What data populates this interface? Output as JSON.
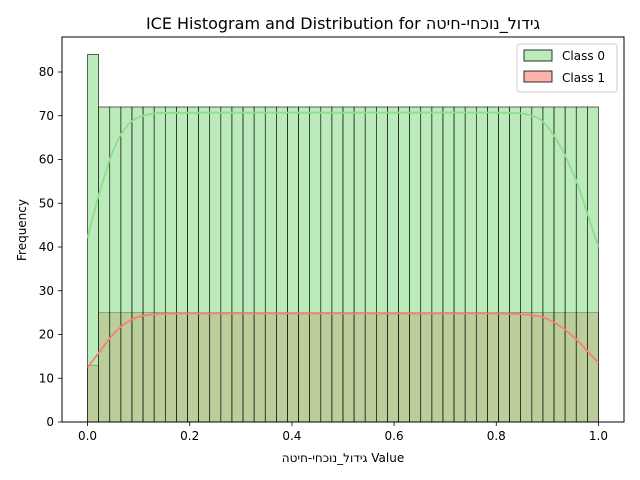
{
  "chart_data": {
    "type": "bar",
    "title": "ICE Histogram and Distribution for גידול_נוכחי-חיטה",
    "xlabel": "גידול_נוכחי-חיטה Value",
    "ylabel": "Frequency",
    "xlim": [
      -0.05,
      1.05
    ],
    "ylim": [
      0,
      88
    ],
    "x_ticks": [
      "0.0",
      "0.2",
      "0.4",
      "0.6",
      "0.8",
      "1.0"
    ],
    "y_ticks": [
      "0",
      "10",
      "20",
      "30",
      "40",
      "50",
      "60",
      "70",
      "80"
    ],
    "grid": false,
    "legend_position": "top-right",
    "bins": 46,
    "bin_range": [
      0.0,
      1.0
    ],
    "series": [
      {
        "name": "Class 0",
        "color": "#90dd8e",
        "counts_first": 84,
        "counts_rest": 72,
        "kde": [
          [
            0.0,
            42
          ],
          [
            0.02,
            51
          ],
          [
            0.05,
            62
          ],
          [
            0.08,
            68
          ],
          [
            0.12,
            70.3
          ],
          [
            0.2,
            70.7
          ],
          [
            0.5,
            70.7
          ],
          [
            0.8,
            70.7
          ],
          [
            0.87,
            70
          ],
          [
            0.9,
            67.5
          ],
          [
            0.93,
            62
          ],
          [
            0.96,
            54
          ],
          [
            0.98,
            47
          ],
          [
            1.0,
            40
          ]
        ]
      },
      {
        "name": "Class 1",
        "color": "#fa8072",
        "counts_first": 13,
        "counts_rest": 25,
        "kde": [
          [
            0.0,
            12.5
          ],
          [
            0.02,
            15.5
          ],
          [
            0.05,
            20
          ],
          [
            0.08,
            23
          ],
          [
            0.12,
            24.5
          ],
          [
            0.2,
            24.8
          ],
          [
            0.5,
            24.8
          ],
          [
            0.8,
            24.8
          ],
          [
            0.87,
            24.4
          ],
          [
            0.9,
            23.5
          ],
          [
            0.93,
            21.5
          ],
          [
            0.96,
            18.5
          ],
          [
            0.98,
            16
          ],
          [
            1.0,
            13.5
          ]
        ]
      }
    ]
  }
}
